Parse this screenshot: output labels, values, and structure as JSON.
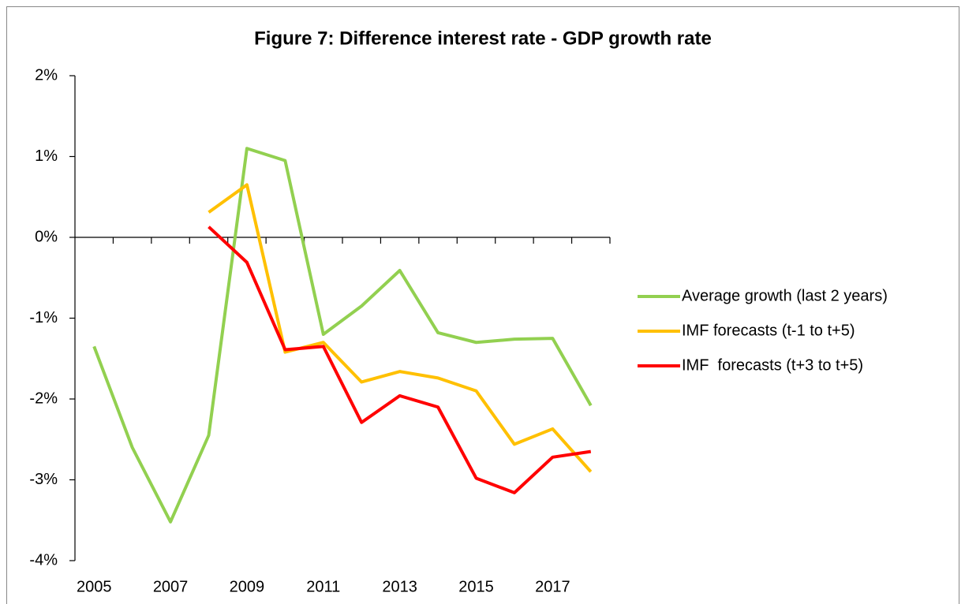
{
  "chart_data": {
    "type": "line",
    "title": "Figure 7: Difference interest rate - GDP growth rate",
    "categories": [
      "2005",
      null,
      "2007",
      null,
      "2009",
      null,
      "2011",
      null,
      "2013",
      null,
      "2015",
      null,
      "2017",
      null
    ],
    "series": [
      {
        "name": "Average growth (last 2 years)",
        "color": "#92d050",
        "values": [
          -1.35,
          -2.6,
          -3.52,
          -2.45,
          1.1,
          0.95,
          -1.2,
          -0.85,
          -0.41,
          -1.18,
          -1.3,
          -1.26,
          -1.25,
          -2.08
        ]
      },
      {
        "name": "IMF forecasts (t-1 to t+5)",
        "color": "#ffc000",
        "values": [
          null,
          null,
          null,
          0.31,
          0.65,
          -1.42,
          -1.3,
          -1.79,
          -1.66,
          -1.74,
          -1.9,
          -2.56,
          -2.37,
          -2.9
        ]
      },
      {
        "name": "IMF  forecasts (t+3 to t+5)",
        "color": "#ff0000",
        "values": [
          null,
          null,
          null,
          0.13,
          -0.31,
          -1.39,
          -1.35,
          -2.29,
          -1.96,
          -2.1,
          -2.98,
          -3.16,
          -2.72,
          -2.65
        ]
      }
    ],
    "ylim": [
      -4,
      2
    ],
    "yticks": [
      {
        "value": -4,
        "label": "-4%"
      },
      {
        "value": -3,
        "label": "-3%"
      },
      {
        "value": -2,
        "label": "-2%"
      },
      {
        "value": -1,
        "label": "-1%"
      },
      {
        "value": 0,
        "label": "0%"
      },
      {
        "value": 1,
        "label": "1%"
      },
      {
        "value": 2,
        "label": "2%"
      }
    ],
    "grid": false,
    "legend": "right"
  }
}
